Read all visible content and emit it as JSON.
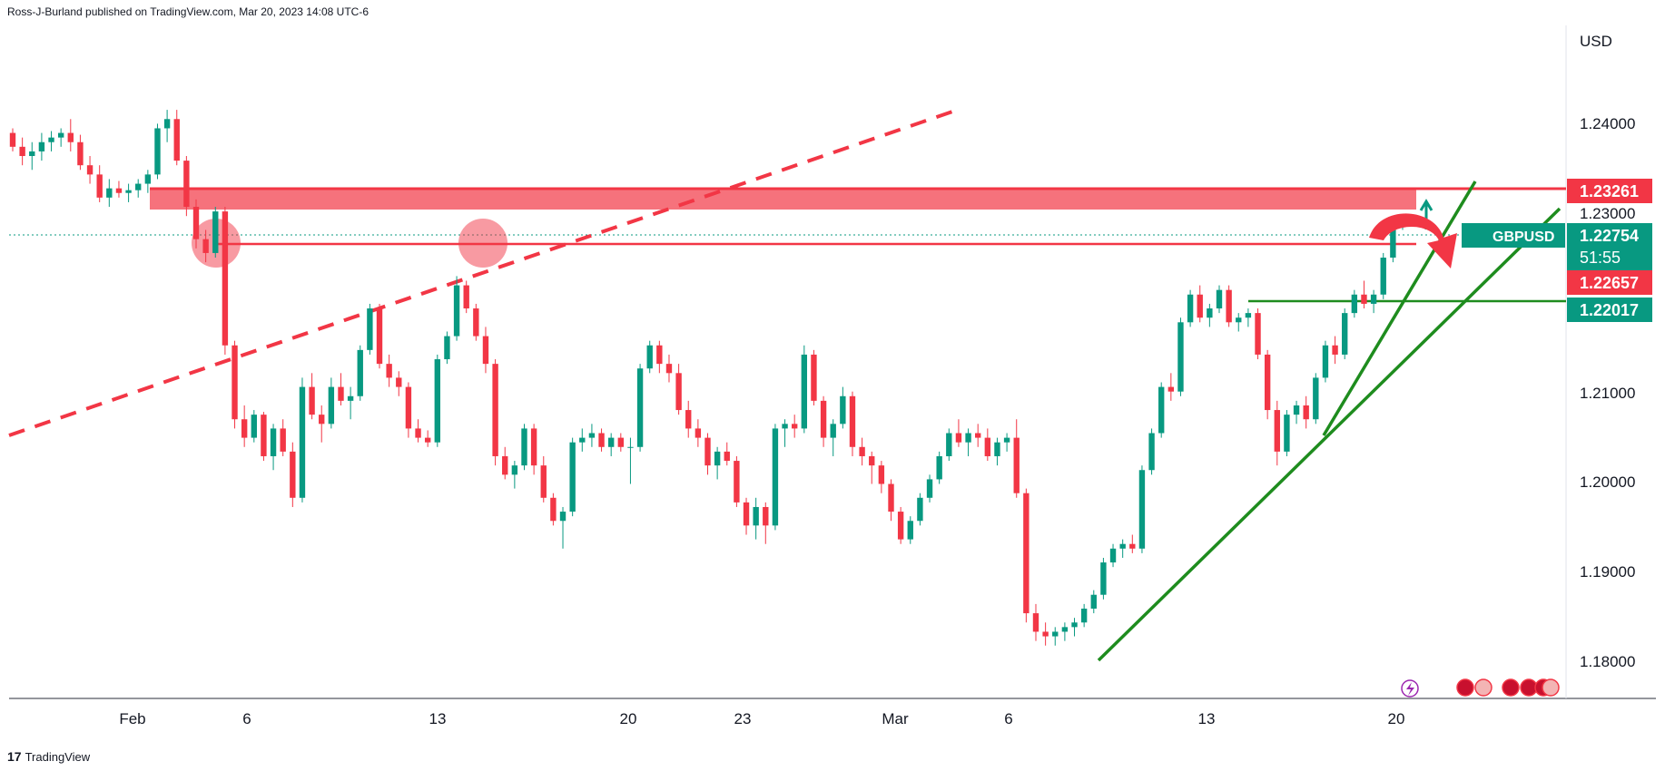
{
  "header": {
    "byline": "Ross-J-Burland published on TradingView.com, Mar 20, 2023 14:08 UTC-6"
  },
  "footer": {
    "brand": "TradingView",
    "logo_glyph": "17"
  },
  "chart_data": {
    "type": "candlestick",
    "symbol": "GBPUSD",
    "currency": "USD",
    "countdown": "51:55",
    "y_ticks": [
      "1.24000",
      "1.23000",
      "1.21000",
      "1.20000",
      "1.19000",
      "1.18000"
    ],
    "x_ticks": [
      "Feb",
      "6",
      "13",
      "20",
      "23",
      "Mar",
      "6",
      "13",
      "20"
    ],
    "price_labels": [
      {
        "value": "1.23261",
        "color": "#f23645"
      },
      {
        "value": "1.22754",
        "color": "#089981"
      },
      {
        "value": "1.22657",
        "color": "#f23645"
      },
      {
        "value": "1.22017",
        "color": "#089981"
      }
    ],
    "colors": {
      "up": "#089981",
      "down": "#f23645",
      "support": "#1e8c1e",
      "resistance": "#f23645"
    },
    "candles": [
      [
        1.237,
        1.2375,
        1.235,
        1.2355
      ],
      [
        1.2355,
        1.2365,
        1.2335,
        1.2345
      ],
      [
        1.2345,
        1.236,
        1.233,
        1.235
      ],
      [
        1.235,
        1.237,
        1.234,
        1.236
      ],
      [
        1.236,
        1.2372,
        1.235,
        1.2365
      ],
      [
        1.2365,
        1.2375,
        1.2355,
        1.237
      ],
      [
        1.237,
        1.2385,
        1.235,
        1.236
      ],
      [
        1.236,
        1.2368,
        1.233,
        1.2335
      ],
      [
        1.2335,
        1.2345,
        1.2315,
        1.2325
      ],
      [
        1.2325,
        1.2335,
        1.2295,
        1.23
      ],
      [
        1.23,
        1.232,
        1.229,
        1.231
      ],
      [
        1.231,
        1.2318,
        1.23,
        1.2305
      ],
      [
        1.2305,
        1.2315,
        1.2295,
        1.2308
      ],
      [
        1.2308,
        1.232,
        1.23,
        1.2315
      ],
      [
        1.2315,
        1.233,
        1.2305,
        1.2325
      ],
      [
        1.2325,
        1.238,
        1.232,
        1.2375
      ],
      [
        1.2375,
        1.2395,
        1.236,
        1.2385
      ],
      [
        1.2385,
        1.2395,
        1.2335,
        1.234
      ],
      [
        1.234,
        1.2345,
        1.228,
        1.229
      ],
      [
        1.229,
        1.2298,
        1.2245,
        1.2255
      ],
      [
        1.2255,
        1.2265,
        1.223,
        1.224
      ],
      [
        1.224,
        1.229,
        1.2235,
        1.2285
      ],
      [
        1.2285,
        1.229,
        1.213,
        1.214
      ],
      [
        1.214,
        1.2145,
        1.205,
        1.206
      ],
      [
        1.206,
        1.2075,
        1.203,
        1.204
      ],
      [
        1.204,
        1.207,
        1.2035,
        1.2065
      ],
      [
        1.2065,
        1.2068,
        1.2015,
        1.202
      ],
      [
        1.202,
        1.2055,
        1.2005,
        1.205
      ],
      [
        1.205,
        1.206,
        1.202,
        1.2025
      ],
      [
        1.2025,
        1.2035,
        1.1965,
        1.1975
      ],
      [
        1.1975,
        1.2105,
        1.197,
        1.2095
      ],
      [
        1.2095,
        1.211,
        1.206,
        1.2065
      ],
      [
        1.2065,
        1.2075,
        1.2035,
        1.2055
      ],
      [
        1.2055,
        1.2105,
        1.205,
        1.2095
      ],
      [
        1.2095,
        1.211,
        1.2075,
        1.208
      ],
      [
        1.208,
        1.2095,
        1.206,
        1.2085
      ],
      [
        1.2085,
        1.214,
        1.208,
        1.2135
      ],
      [
        1.2135,
        1.2185,
        1.213,
        1.218
      ],
      [
        1.218,
        1.2185,
        1.2115,
        1.212
      ],
      [
        1.212,
        1.213,
        1.2095,
        1.2105
      ],
      [
        1.2105,
        1.2112,
        1.2085,
        1.2095
      ],
      [
        1.2095,
        1.21,
        1.204,
        1.205
      ],
      [
        1.205,
        1.206,
        1.2035,
        1.204
      ],
      [
        1.204,
        1.2048,
        1.203,
        1.2035
      ],
      [
        1.2035,
        1.213,
        1.203,
        1.2125
      ],
      [
        1.2125,
        1.2155,
        1.212,
        1.215
      ],
      [
        1.215,
        1.2215,
        1.2145,
        1.2205
      ],
      [
        1.2205,
        1.221,
        1.2175,
        1.218
      ],
      [
        1.218,
        1.2185,
        1.2145,
        1.215
      ],
      [
        1.215,
        1.216,
        1.211,
        1.212
      ],
      [
        1.212,
        1.2125,
        1.201,
        1.202
      ],
      [
        1.202,
        1.203,
        1.1995,
        1.2
      ],
      [
        1.2,
        1.2015,
        1.1985,
        1.201
      ],
      [
        1.201,
        1.2055,
        1.2005,
        1.205
      ],
      [
        1.205,
        1.2055,
        1.2,
        1.201
      ],
      [
        1.201,
        1.202,
        1.197,
        1.1975
      ],
      [
        1.1975,
        1.198,
        1.1945,
        1.195
      ],
      [
        1.195,
        1.1965,
        1.192,
        1.196
      ],
      [
        1.196,
        1.204,
        1.1955,
        1.2035
      ],
      [
        1.2035,
        1.205,
        1.2025,
        1.204
      ],
      [
        1.204,
        1.2055,
        1.203,
        1.2045
      ],
      [
        1.2045,
        1.205,
        1.2025,
        1.203
      ],
      [
        1.203,
        1.2045,
        1.202,
        1.204
      ],
      [
        1.204,
        1.2045,
        1.2025,
        1.203
      ],
      [
        1.203,
        1.204,
        1.199,
        1.203
      ],
      [
        1.203,
        1.212,
        1.2025,
        1.2115
      ],
      [
        1.2115,
        1.2145,
        1.211,
        1.214
      ],
      [
        1.214,
        1.2145,
        1.211,
        1.212
      ],
      [
        1.212,
        1.213,
        1.21,
        1.211
      ],
      [
        1.211,
        1.212,
        1.2065,
        1.207
      ],
      [
        1.207,
        1.208,
        1.204,
        1.205
      ],
      [
        1.205,
        1.206,
        1.203,
        1.204
      ],
      [
        1.204,
        1.2045,
        1.2,
        1.201
      ],
      [
        1.201,
        1.203,
        1.1995,
        1.2025
      ],
      [
        1.2025,
        1.2035,
        1.201,
        1.2015
      ],
      [
        1.2015,
        1.202,
        1.1965,
        1.197
      ],
      [
        1.197,
        1.1975,
        1.1935,
        1.1945
      ],
      [
        1.1945,
        1.1975,
        1.193,
        1.1965
      ],
      [
        1.1965,
        1.197,
        1.1925,
        1.1945
      ],
      [
        1.1945,
        1.2055,
        1.194,
        1.205
      ],
      [
        1.205,
        1.206,
        1.203,
        1.2055
      ],
      [
        1.2055,
        1.2065,
        1.204,
        1.205
      ],
      [
        1.205,
        1.214,
        1.2045,
        1.213
      ],
      [
        1.213,
        1.2135,
        1.2075,
        1.208
      ],
      [
        1.208,
        1.2085,
        1.203,
        1.204
      ],
      [
        1.204,
        1.206,
        1.202,
        1.2055
      ],
      [
        1.2055,
        1.2095,
        1.205,
        1.2085
      ],
      [
        1.2085,
        1.209,
        1.202,
        1.203
      ],
      [
        1.203,
        1.204,
        1.201,
        1.202
      ],
      [
        1.202,
        1.2025,
        1.199,
        1.201
      ],
      [
        1.201,
        1.2015,
        1.198,
        1.199
      ],
      [
        1.199,
        1.1995,
        1.195,
        1.196
      ],
      [
        1.196,
        1.1965,
        1.1925,
        1.193
      ],
      [
        1.193,
        1.1955,
        1.1925,
        1.195
      ],
      [
        1.195,
        1.198,
        1.1945,
        1.1975
      ],
      [
        1.1975,
        1.2,
        1.197,
        1.1995
      ],
      [
        1.1995,
        1.2025,
        1.199,
        1.202
      ],
      [
        1.202,
        1.205,
        1.2015,
        1.2045
      ],
      [
        1.2045,
        1.206,
        1.203,
        1.2035
      ],
      [
        1.2035,
        1.205,
        1.202,
        1.2045
      ],
      [
        1.2045,
        1.2055,
        1.203,
        1.204
      ],
      [
        1.204,
        1.205,
        1.2015,
        1.202
      ],
      [
        1.202,
        1.204,
        1.201,
        1.2035
      ],
      [
        1.2035,
        1.2045,
        1.2025,
        1.204
      ],
      [
        1.204,
        1.206,
        1.1975,
        1.198
      ],
      [
        1.198,
        1.1985,
        1.184,
        1.185
      ],
      [
        1.185,
        1.186,
        1.182,
        1.183
      ],
      [
        1.183,
        1.184,
        1.1815,
        1.1825
      ],
      [
        1.1825,
        1.1835,
        1.1815,
        1.183
      ],
      [
        1.183,
        1.184,
        1.182,
        1.1835
      ],
      [
        1.1835,
        1.1845,
        1.1825,
        1.184
      ],
      [
        1.184,
        1.186,
        1.1835,
        1.1855
      ],
      [
        1.1855,
        1.1875,
        1.185,
        1.187
      ],
      [
        1.187,
        1.191,
        1.1865,
        1.1905
      ],
      [
        1.1905,
        1.1925,
        1.19,
        1.192
      ],
      [
        1.192,
        1.193,
        1.191,
        1.1925
      ],
      [
        1.1925,
        1.1935,
        1.1915,
        1.192
      ],
      [
        1.192,
        1.201,
        1.1915,
        1.2005
      ],
      [
        1.2005,
        1.205,
        1.2,
        1.2045
      ],
      [
        1.2045,
        1.21,
        1.204,
        1.2095
      ],
      [
        1.2095,
        1.211,
        1.208,
        1.209
      ],
      [
        1.209,
        1.217,
        1.2085,
        1.2165
      ],
      [
        1.2165,
        1.22,
        1.216,
        1.2195
      ],
      [
        1.2195,
        1.2205,
        1.2165,
        1.217
      ],
      [
        1.217,
        1.2185,
        1.216,
        1.218
      ],
      [
        1.218,
        1.2205,
        1.2175,
        1.22
      ],
      [
        1.22,
        1.2205,
        1.216,
        1.2165
      ],
      [
        1.2165,
        1.2175,
        1.2155,
        1.217
      ],
      [
        1.217,
        1.218,
        1.216,
        1.2175
      ],
      [
        1.2175,
        1.218,
        1.2125,
        1.213
      ],
      [
        1.213,
        1.2135,
        1.206,
        1.207
      ],
      [
        1.207,
        1.208,
        1.201,
        1.2025
      ],
      [
        1.2025,
        1.207,
        1.202,
        1.2065
      ],
      [
        1.2065,
        1.208,
        1.2055,
        1.2075
      ],
      [
        1.2075,
        1.2085,
        1.205,
        1.206
      ],
      [
        1.206,
        1.211,
        1.2055,
        1.2105
      ],
      [
        1.2105,
        1.2145,
        1.21,
        1.214
      ],
      [
        1.214,
        1.215,
        1.212,
        1.213
      ],
      [
        1.213,
        1.218,
        1.2125,
        1.2175
      ],
      [
        1.2175,
        1.22,
        1.217,
        1.2195
      ],
      [
        1.2195,
        1.221,
        1.218,
        1.2185
      ],
      [
        1.2185,
        1.22,
        1.2175,
        1.2195
      ],
      [
        1.2195,
        1.224,
        1.219,
        1.2235
      ],
      [
        1.2235,
        1.2275,
        1.223,
        1.227
      ],
      [
        1.227,
        1.228,
        1.2265,
        1.2275
      ]
    ]
  }
}
